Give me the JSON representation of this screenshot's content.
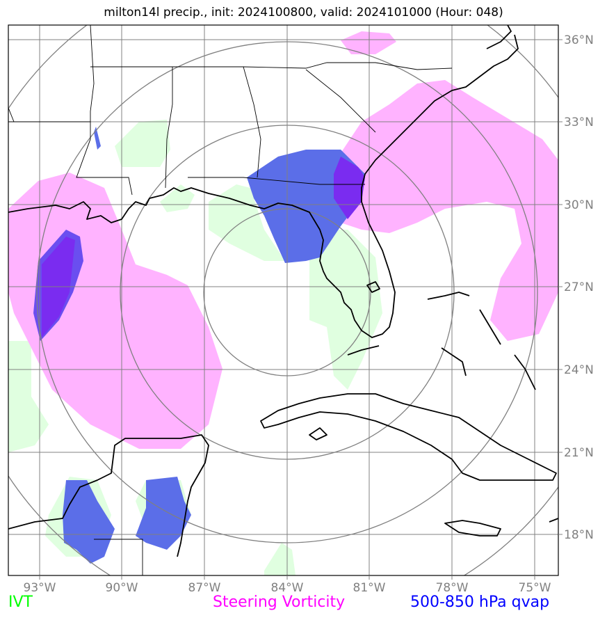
{
  "title": "milton14l precip., init: 2024100800, valid: 2024101000 (Hour: 048)",
  "lon_ticks": [
    "93°W",
    "90°W",
    "87°W",
    "84°W",
    "81°W",
    "78°W",
    "75°W"
  ],
  "lat_ticks": [
    "36°N",
    "33°N",
    "30°N",
    "27°N",
    "24°N",
    "21°N",
    "18°N"
  ],
  "legend": [
    {
      "label": "IVT",
      "color": "#00ff00"
    },
    {
      "label": "Steering Vorticity",
      "color": "#ff00ff"
    },
    {
      "label": "500-850 hPa qvap",
      "color": "#0000ff"
    }
  ],
  "colors": {
    "ivt_fill": "#e0ffe0",
    "vorticity_fill": "#ffb3ff",
    "qvap_fill": "#5b6ee8",
    "qvap_core": "#7a2cf0",
    "grid": "#808080",
    "coast": "#000000"
  }
}
